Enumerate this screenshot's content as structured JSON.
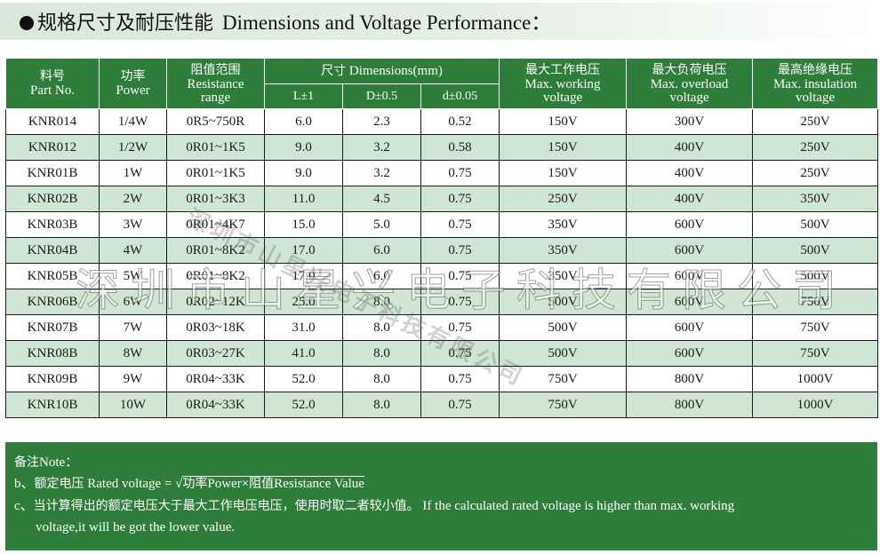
{
  "title": {
    "zh": "规格尺寸及耐压性能",
    "en": "Dimensions and Voltage Performance："
  },
  "table": {
    "headers": {
      "part": {
        "zh": "料号",
        "en": "Part No."
      },
      "power": {
        "zh": "功率",
        "en": "Power"
      },
      "resistance": {
        "zh": "阻值范围",
        "en": "Resistance",
        "en2": "range"
      },
      "dimensions": {
        "zh": "尺寸",
        "en": "Dimensions(mm)"
      },
      "L": "L±1",
      "D": "D±0.5",
      "d": "d±0.05",
      "working": {
        "zh": "最大工作电压",
        "en": "Max. working",
        "en2": "voltage"
      },
      "overload": {
        "zh": "最大负荷电压",
        "en": "Max. overload",
        "en2": "voltage"
      },
      "insulation": {
        "zh": "最高绝缘电压",
        "en": "Max. insulation",
        "en2": "voltage"
      }
    },
    "rows": [
      [
        "KNR014",
        "1/4W",
        "0R5~750R",
        "6.0",
        "2.3",
        "0.52",
        "150V",
        "300V",
        "250V"
      ],
      [
        "KNR012",
        "1/2W",
        "0R01~1K5",
        "9.0",
        "3.2",
        "0.58",
        "150V",
        "400V",
        "250V"
      ],
      [
        "KNR01B",
        "1W",
        "0R01~1K5",
        "9.0",
        "3.2",
        "0.75",
        "150V",
        "400V",
        "250V"
      ],
      [
        "KNR02B",
        "2W",
        "0R01~3K3",
        "11.0",
        "4.5",
        "0.75",
        "250V",
        "400V",
        "350V"
      ],
      [
        "KNR03B",
        "3W",
        "0R01~4K7",
        "15.0",
        "5.0",
        "0.75",
        "350V",
        "600V",
        "500V"
      ],
      [
        "KNR04B",
        "4W",
        "0R01~8K2",
        "17.0",
        "6.0",
        "0.75",
        "350V",
        "600V",
        "500V"
      ],
      [
        "KNR05B",
        "5W",
        "0R01~8K2",
        "17.0",
        "6.0",
        "0.75",
        "350V",
        "600V",
        "500V"
      ],
      [
        "KNR06B",
        "6W",
        "0R02~12K",
        "25.0",
        "8.0",
        "0.75",
        "500V",
        "600V",
        "750V"
      ],
      [
        "KNR07B",
        "7W",
        "0R03~18K",
        "31.0",
        "8.0",
        "0.75",
        "500V",
        "600V",
        "750V"
      ],
      [
        "KNR08B",
        "8W",
        "0R03~27K",
        "41.0",
        "8.0",
        "0.75",
        "500V",
        "600V",
        "750V"
      ],
      [
        "KNR09B",
        "9W",
        "0R04~33K",
        "52.0",
        "8.0",
        "0.75",
        "750V",
        "800V",
        "1000V"
      ],
      [
        "KNR10B",
        "10W",
        "0R04~33K",
        "52.0",
        "8.0",
        "0.75",
        "750V",
        "800V",
        "1000V"
      ]
    ]
  },
  "notes": {
    "heading_zh": "备注",
    "heading_en": "Note：",
    "b_prefix": "b、",
    "b_zh": "额定电压",
    "b_en": "Rated voltage = √",
    "b_formula_zh1": "功率",
    "b_formula_en1": "Power×",
    "b_formula_zh2": "阻值",
    "b_formula_en2": "Resistance Value",
    "c_prefix": "c、",
    "c_zh": "当计算得出的额定电压大于最大工作电压电压，使用时取二者较小值。",
    "c_en": "If the calculated rated voltage is higher than max. working",
    "c_en2": "voltage,it will be got the lower value."
  },
  "watermark": {
    "text": "深圳市山星兴电子科技有限公司",
    "diagonal": "深圳市山星兴电子科技有限公司"
  },
  "colors": {
    "header_green": "#2e7d3a",
    "row_alt": "#cfe6d4",
    "title_bar": "#d9e8da"
  }
}
